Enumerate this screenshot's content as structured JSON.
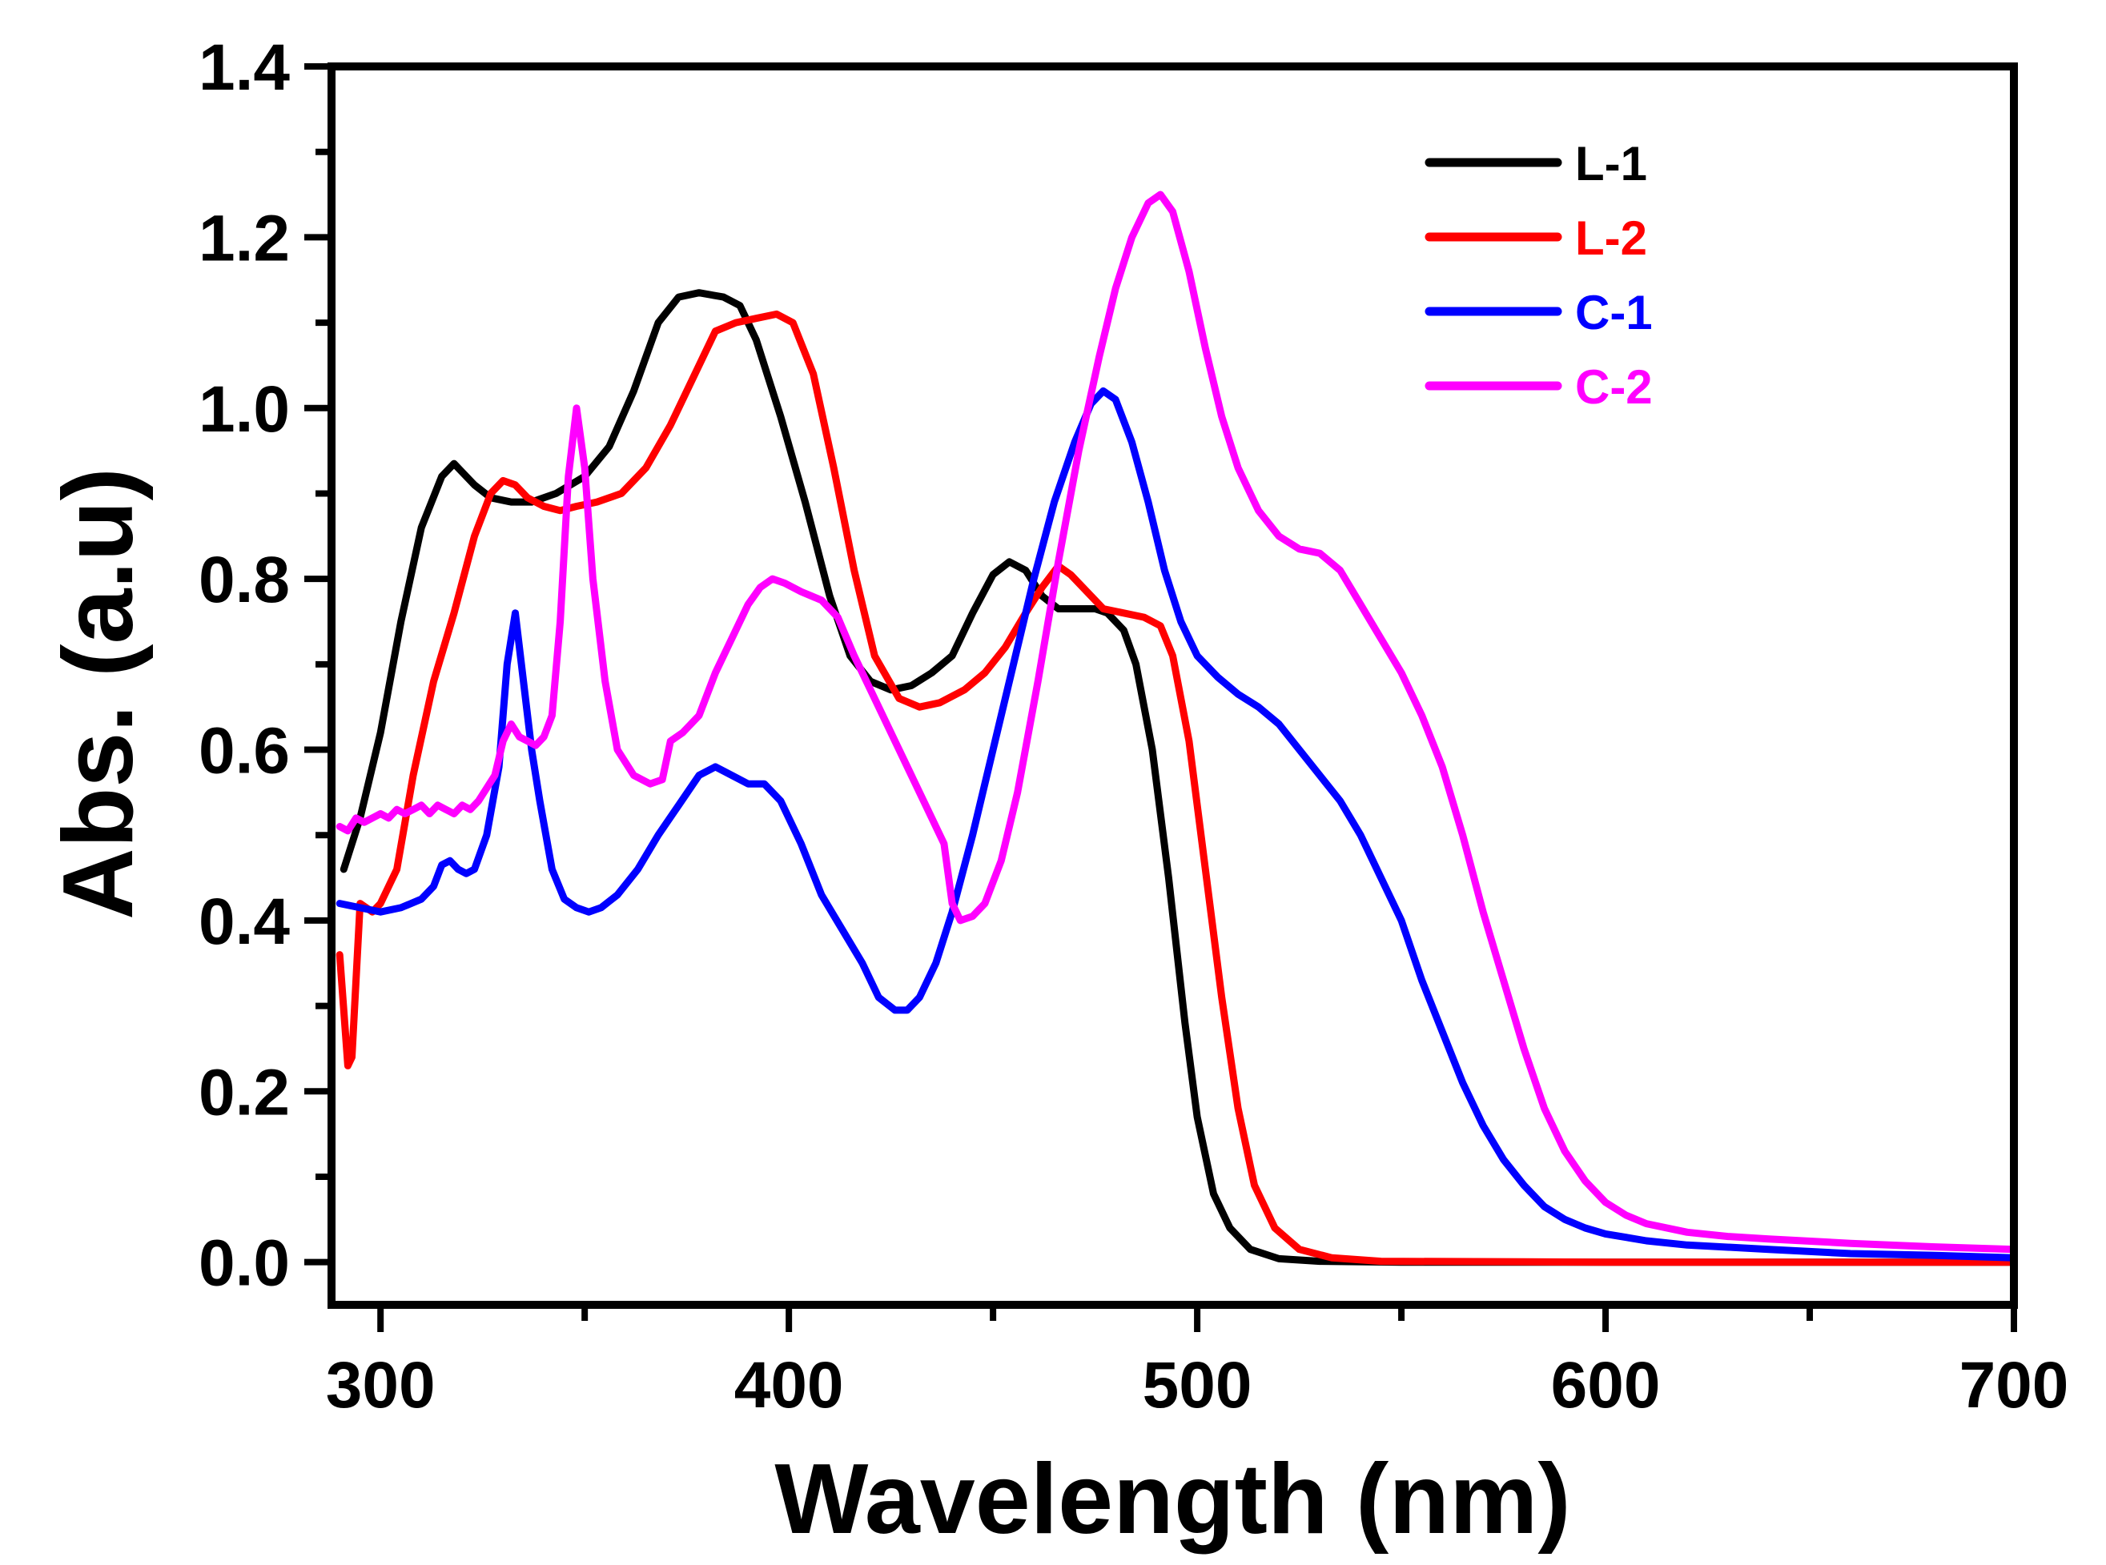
{
  "chart_data": {
    "type": "line",
    "title": "",
    "xlabel": "Wavelength (nm)",
    "ylabel": "Abs. (a.u)",
    "xlim": [
      288,
      700
    ],
    "ylim": [
      -0.05,
      1.4
    ],
    "xticks": [
      300,
      400,
      500,
      600,
      700
    ],
    "xtick_labels": [
      "300",
      "400",
      "500",
      "600",
      "700"
    ],
    "yticks": [
      0.0,
      0.2,
      0.4,
      0.6,
      0.8,
      1.0,
      1.2,
      1.4
    ],
    "ytick_labels": [
      "0.0",
      "0.2",
      "0.4",
      "0.6",
      "0.8",
      "1.0",
      "1.2",
      "1.4"
    ],
    "grid": false,
    "legend_position": "top-right",
    "series": [
      {
        "name": "L-1",
        "color": "#000000",
        "points": [
          [
            291,
            0.46
          ],
          [
            295,
            0.52
          ],
          [
            300,
            0.62
          ],
          [
            305,
            0.75
          ],
          [
            310,
            0.86
          ],
          [
            315,
            0.92
          ],
          [
            318,
            0.935
          ],
          [
            320,
            0.925
          ],
          [
            323,
            0.91
          ],
          [
            327,
            0.895
          ],
          [
            332,
            0.89
          ],
          [
            337,
            0.89
          ],
          [
            343,
            0.9
          ],
          [
            350,
            0.92
          ],
          [
            356,
            0.955
          ],
          [
            362,
            1.02
          ],
          [
            368,
            1.1
          ],
          [
            373,
            1.13
          ],
          [
            378,
            1.135
          ],
          [
            384,
            1.13
          ],
          [
            388,
            1.12
          ],
          [
            392,
            1.08
          ],
          [
            398,
            0.99
          ],
          [
            404,
            0.89
          ],
          [
            410,
            0.78
          ],
          [
            415,
            0.71
          ],
          [
            420,
            0.68
          ],
          [
            425,
            0.67
          ],
          [
            430,
            0.675
          ],
          [
            435,
            0.69
          ],
          [
            440,
            0.71
          ],
          [
            445,
            0.76
          ],
          [
            450,
            0.805
          ],
          [
            454,
            0.82
          ],
          [
            458,
            0.81
          ],
          [
            462,
            0.78
          ],
          [
            466,
            0.765
          ],
          [
            470,
            0.765
          ],
          [
            475,
            0.765
          ],
          [
            478,
            0.76
          ],
          [
            482,
            0.74
          ],
          [
            485,
            0.7
          ],
          [
            489,
            0.6
          ],
          [
            493,
            0.45
          ],
          [
            497,
            0.28
          ],
          [
            500,
            0.17
          ],
          [
            504,
            0.08
          ],
          [
            508,
            0.04
          ],
          [
            513,
            0.015
          ],
          [
            520,
            0.004
          ],
          [
            530,
            0.001
          ],
          [
            550,
            0.0
          ],
          [
            600,
            0.0
          ],
          [
            650,
            0.0
          ],
          [
            700,
            0.0
          ]
        ]
      },
      {
        "name": "L-2",
        "color": "#ff0000",
        "points": [
          [
            290,
            0.36
          ],
          [
            292,
            0.23
          ],
          [
            293,
            0.24
          ],
          [
            295,
            0.42
          ],
          [
            298,
            0.41
          ],
          [
            300,
            0.42
          ],
          [
            304,
            0.46
          ],
          [
            308,
            0.57
          ],
          [
            313,
            0.68
          ],
          [
            318,
            0.76
          ],
          [
            323,
            0.85
          ],
          [
            327,
            0.9
          ],
          [
            330,
            0.915
          ],
          [
            333,
            0.91
          ],
          [
            336,
            0.895
          ],
          [
            340,
            0.885
          ],
          [
            344,
            0.88
          ],
          [
            348,
            0.885
          ],
          [
            353,
            0.89
          ],
          [
            359,
            0.9
          ],
          [
            365,
            0.93
          ],
          [
            371,
            0.98
          ],
          [
            377,
            1.04
          ],
          [
            382,
            1.09
          ],
          [
            387,
            1.1
          ],
          [
            392,
            1.105
          ],
          [
            397,
            1.11
          ],
          [
            401,
            1.1
          ],
          [
            406,
            1.04
          ],
          [
            411,
            0.93
          ],
          [
            416,
            0.81
          ],
          [
            421,
            0.71
          ],
          [
            427,
            0.66
          ],
          [
            432,
            0.65
          ],
          [
            437,
            0.655
          ],
          [
            443,
            0.67
          ],
          [
            448,
            0.69
          ],
          [
            453,
            0.72
          ],
          [
            458,
            0.76
          ],
          [
            462,
            0.79
          ],
          [
            466,
            0.815
          ],
          [
            469,
            0.805
          ],
          [
            473,
            0.785
          ],
          [
            477,
            0.765
          ],
          [
            482,
            0.76
          ],
          [
            487,
            0.755
          ],
          [
            491,
            0.745
          ],
          [
            494,
            0.71
          ],
          [
            498,
            0.61
          ],
          [
            502,
            0.46
          ],
          [
            506,
            0.31
          ],
          [
            510,
            0.18
          ],
          [
            514,
            0.09
          ],
          [
            519,
            0.04
          ],
          [
            525,
            0.015
          ],
          [
            533,
            0.005
          ],
          [
            545,
            0.001
          ],
          [
            600,
            0.0
          ],
          [
            650,
            0.0
          ],
          [
            700,
            0.0
          ]
        ]
      },
      {
        "name": "C-1",
        "color": "#0000ff",
        "points": [
          [
            290,
            0.42
          ],
          [
            295,
            0.415
          ],
          [
            300,
            0.41
          ],
          [
            305,
            0.415
          ],
          [
            310,
            0.425
          ],
          [
            313,
            0.44
          ],
          [
            315,
            0.465
          ],
          [
            317,
            0.47
          ],
          [
            319,
            0.46
          ],
          [
            321,
            0.455
          ],
          [
            323,
            0.46
          ],
          [
            326,
            0.5
          ],
          [
            329,
            0.58
          ],
          [
            331,
            0.7
          ],
          [
            333,
            0.76
          ],
          [
            335,
            0.68
          ],
          [
            337,
            0.6
          ],
          [
            339,
            0.54
          ],
          [
            342,
            0.46
          ],
          [
            345,
            0.425
          ],
          [
            348,
            0.415
          ],
          [
            351,
            0.41
          ],
          [
            354,
            0.415
          ],
          [
            358,
            0.43
          ],
          [
            363,
            0.46
          ],
          [
            368,
            0.5
          ],
          [
            373,
            0.535
          ],
          [
            378,
            0.57
          ],
          [
            382,
            0.58
          ],
          [
            386,
            0.57
          ],
          [
            390,
            0.56
          ],
          [
            394,
            0.56
          ],
          [
            398,
            0.54
          ],
          [
            403,
            0.49
          ],
          [
            408,
            0.43
          ],
          [
            413,
            0.39
          ],
          [
            418,
            0.35
          ],
          [
            422,
            0.31
          ],
          [
            426,
            0.295
          ],
          [
            429,
            0.295
          ],
          [
            432,
            0.31
          ],
          [
            436,
            0.35
          ],
          [
            440,
            0.41
          ],
          [
            445,
            0.5
          ],
          [
            450,
            0.6
          ],
          [
            455,
            0.7
          ],
          [
            460,
            0.8
          ],
          [
            465,
            0.89
          ],
          [
            470,
            0.96
          ],
          [
            474,
            1.005
          ],
          [
            477,
            1.02
          ],
          [
            480,
            1.01
          ],
          [
            484,
            0.96
          ],
          [
            488,
            0.89
          ],
          [
            492,
            0.81
          ],
          [
            496,
            0.75
          ],
          [
            500,
            0.71
          ],
          [
            505,
            0.685
          ],
          [
            510,
            0.665
          ],
          [
            515,
            0.65
          ],
          [
            520,
            0.63
          ],
          [
            525,
            0.6
          ],
          [
            530,
            0.57
          ],
          [
            535,
            0.54
          ],
          [
            540,
            0.5
          ],
          [
            545,
            0.45
          ],
          [
            550,
            0.4
          ],
          [
            555,
            0.33
          ],
          [
            560,
            0.27
          ],
          [
            565,
            0.21
          ],
          [
            570,
            0.16
          ],
          [
            575,
            0.12
          ],
          [
            580,
            0.09
          ],
          [
            585,
            0.065
          ],
          [
            590,
            0.05
          ],
          [
            595,
            0.04
          ],
          [
            600,
            0.033
          ],
          [
            610,
            0.025
          ],
          [
            620,
            0.02
          ],
          [
            640,
            0.015
          ],
          [
            660,
            0.01
          ],
          [
            680,
            0.008
          ],
          [
            700,
            0.005
          ]
        ]
      },
      {
        "name": "C-2",
        "color": "#ff00ff",
        "points": [
          [
            290,
            0.51
          ],
          [
            292,
            0.505
          ],
          [
            294,
            0.52
          ],
          [
            296,
            0.515
          ],
          [
            298,
            0.52
          ],
          [
            300,
            0.525
          ],
          [
            302,
            0.52
          ],
          [
            304,
            0.53
          ],
          [
            306,
            0.525
          ],
          [
            308,
            0.53
          ],
          [
            310,
            0.535
          ],
          [
            312,
            0.525
          ],
          [
            314,
            0.535
          ],
          [
            316,
            0.53
          ],
          [
            318,
            0.525
          ],
          [
            320,
            0.535
          ],
          [
            322,
            0.53
          ],
          [
            324,
            0.54
          ],
          [
            326,
            0.555
          ],
          [
            328,
            0.57
          ],
          [
            330,
            0.61
          ],
          [
            332,
            0.63
          ],
          [
            334,
            0.615
          ],
          [
            336,
            0.61
          ],
          [
            338,
            0.605
          ],
          [
            340,
            0.615
          ],
          [
            342,
            0.64
          ],
          [
            344,
            0.75
          ],
          [
            346,
            0.92
          ],
          [
            348,
            1.0
          ],
          [
            350,
            0.93
          ],
          [
            352,
            0.8
          ],
          [
            355,
            0.68
          ],
          [
            358,
            0.6
          ],
          [
            362,
            0.57
          ],
          [
            366,
            0.56
          ],
          [
            369,
            0.565
          ],
          [
            371,
            0.61
          ],
          [
            374,
            0.62
          ],
          [
            378,
            0.64
          ],
          [
            382,
            0.69
          ],
          [
            386,
            0.73
          ],
          [
            390,
            0.77
          ],
          [
            393,
            0.79
          ],
          [
            396,
            0.8
          ],
          [
            399,
            0.795
          ],
          [
            403,
            0.785
          ],
          [
            408,
            0.775
          ],
          [
            412,
            0.755
          ],
          [
            416,
            0.71
          ],
          [
            420,
            0.67
          ],
          [
            425,
            0.62
          ],
          [
            430,
            0.57
          ],
          [
            434,
            0.53
          ],
          [
            438,
            0.49
          ],
          [
            440,
            0.42
          ],
          [
            442,
            0.4
          ],
          [
            445,
            0.405
          ],
          [
            448,
            0.42
          ],
          [
            452,
            0.47
          ],
          [
            456,
            0.55
          ],
          [
            461,
            0.68
          ],
          [
            466,
            0.82
          ],
          [
            471,
            0.95
          ],
          [
            476,
            1.06
          ],
          [
            480,
            1.14
          ],
          [
            484,
            1.2
          ],
          [
            488,
            1.24
          ],
          [
            491,
            1.25
          ],
          [
            494,
            1.23
          ],
          [
            498,
            1.16
          ],
          [
            502,
            1.07
          ],
          [
            506,
            0.99
          ],
          [
            510,
            0.93
          ],
          [
            515,
            0.88
          ],
          [
            520,
            0.85
          ],
          [
            525,
            0.835
          ],
          [
            530,
            0.83
          ],
          [
            535,
            0.81
          ],
          [
            540,
            0.77
          ],
          [
            545,
            0.73
          ],
          [
            550,
            0.69
          ],
          [
            555,
            0.64
          ],
          [
            560,
            0.58
          ],
          [
            565,
            0.5
          ],
          [
            570,
            0.41
          ],
          [
            575,
            0.33
          ],
          [
            580,
            0.25
          ],
          [
            585,
            0.18
          ],
          [
            590,
            0.13
          ],
          [
            595,
            0.095
          ],
          [
            600,
            0.07
          ],
          [
            605,
            0.055
          ],
          [
            610,
            0.045
          ],
          [
            620,
            0.035
          ],
          [
            630,
            0.03
          ],
          [
            640,
            0.027
          ],
          [
            660,
            0.022
          ],
          [
            680,
            0.018
          ],
          [
            700,
            0.015
          ]
        ]
      }
    ]
  }
}
